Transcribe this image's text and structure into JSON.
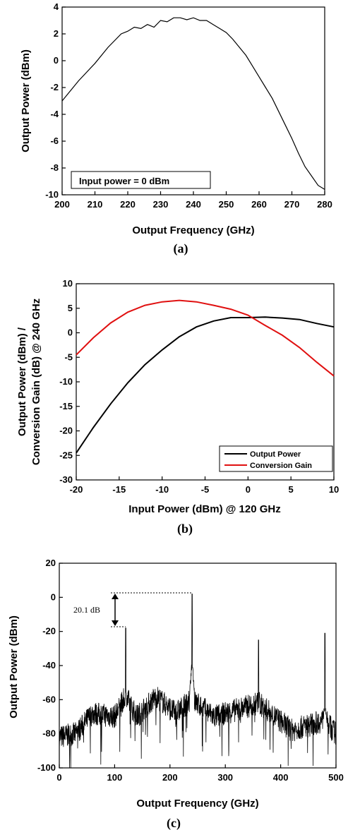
{
  "chart_data": [
    {
      "type": "line",
      "xlabel": "Output Frequency (GHz)",
      "ylabel": "Output Power (dBm)",
      "xlim": [
        200,
        280
      ],
      "ylim": [
        -10,
        4
      ],
      "xticks": [
        "200",
        "210",
        "220",
        "230",
        "240",
        "250",
        "260",
        "270",
        "280"
      ],
      "yticks": [
        "4",
        "2",
        "0",
        "-2",
        "-4",
        "-6",
        "-8",
        "-10"
      ],
      "caption": "(a)",
      "annotation": "Input power = 0 dBm",
      "series": [
        {
          "color": "#000000",
          "x": [
            200,
            205,
            210,
            214,
            218,
            220,
            222,
            224,
            226,
            228,
            230,
            232,
            234,
            236,
            238,
            240,
            242,
            244,
            246,
            248,
            250,
            252,
            254,
            256,
            258,
            260,
            262,
            264,
            266,
            268,
            270,
            272,
            274,
            276,
            278,
            280
          ],
          "y": [
            -3.0,
            -1.5,
            -0.2,
            1.0,
            2.0,
            2.2,
            2.5,
            2.4,
            2.7,
            2.5,
            3.0,
            2.9,
            3.2,
            3.2,
            3.05,
            3.2,
            3.0,
            3.0,
            2.7,
            2.4,
            2.1,
            1.6,
            1.0,
            0.4,
            -0.4,
            -1.2,
            -2.0,
            -2.8,
            -3.8,
            -4.8,
            -5.8,
            -6.9,
            -7.9,
            -8.6,
            -9.3,
            -9.6
          ]
        }
      ]
    },
    {
      "type": "line",
      "xlabel": "Input Power (dBm) @ 120 GHz",
      "ylabel": "Output Power (dBm) / Conversion Gain (dB) @ 240 GHz",
      "ylabel_line1": "Output Power (dBm) /",
      "ylabel_line2": "Conversion Gain (dB) @ 240 GHz",
      "xlim": [
        -20,
        10
      ],
      "ylim": [
        -30,
        10
      ],
      "xticks": [
        "-20",
        "-15",
        "-10",
        "-5",
        "0",
        "5",
        "10"
      ],
      "yticks": [
        "10",
        "5",
        "0",
        "-5",
        "-10",
        "-15",
        "-20",
        "-25",
        "-30"
      ],
      "caption": "(b)",
      "legend_position": "bottom-right",
      "series": [
        {
          "name": "Output Power",
          "color": "#000000",
          "x": [
            -20,
            -18,
            -16,
            -14,
            -12,
            -10,
            -8,
            -6,
            -4,
            -2,
            0,
            2,
            4,
            6,
            8,
            10
          ],
          "y": [
            -24.5,
            -19.3,
            -14.5,
            -10.2,
            -6.5,
            -3.5,
            -0.8,
            1.2,
            2.4,
            3.1,
            3.1,
            3.2,
            3.0,
            2.7,
            1.9,
            1.2
          ]
        },
        {
          "name": "Conversion Gain",
          "color": "#e01010",
          "x": [
            -20,
            -18,
            -16,
            -14,
            -12,
            -10,
            -8,
            -6,
            -4,
            -2,
            0,
            2,
            4,
            6,
            8,
            10
          ],
          "y": [
            -4.5,
            -1.0,
            2.0,
            4.2,
            5.6,
            6.3,
            6.6,
            6.3,
            5.6,
            4.8,
            3.6,
            1.5,
            -0.5,
            -3.0,
            -6.0,
            -8.8
          ]
        }
      ]
    },
    {
      "type": "line",
      "xlabel": "Output Frequency (GHz)",
      "ylabel": "Output Power (dBm)",
      "xlim": [
        0,
        500
      ],
      "ylim": [
        -100,
        20
      ],
      "xticks": [
        "0",
        "100",
        "200",
        "300",
        "400",
        "500"
      ],
      "yticks": [
        "20",
        "0",
        "-20",
        "-40",
        "-60",
        "-80",
        "-100"
      ],
      "caption": "(c)",
      "annotation": "20.1 dB",
      "peaks": [
        {
          "x": 120,
          "y": -18
        },
        {
          "x": 240,
          "y": 2
        },
        {
          "x": 360,
          "y": -25
        },
        {
          "x": 480,
          "y": -21
        }
      ],
      "noise_floor": [
        {
          "x": 0,
          "y": -82
        },
        {
          "x": 30,
          "y": -80
        },
        {
          "x": 60,
          "y": -68
        },
        {
          "x": 100,
          "y": -70
        },
        {
          "x": 120,
          "y": -58
        },
        {
          "x": 140,
          "y": -70
        },
        {
          "x": 175,
          "y": -58
        },
        {
          "x": 210,
          "y": -68
        },
        {
          "x": 240,
          "y": -60
        },
        {
          "x": 280,
          "y": -70
        },
        {
          "x": 360,
          "y": -62
        },
        {
          "x": 420,
          "y": -78
        },
        {
          "x": 480,
          "y": -72
        },
        {
          "x": 500,
          "y": -80
        }
      ]
    }
  ]
}
